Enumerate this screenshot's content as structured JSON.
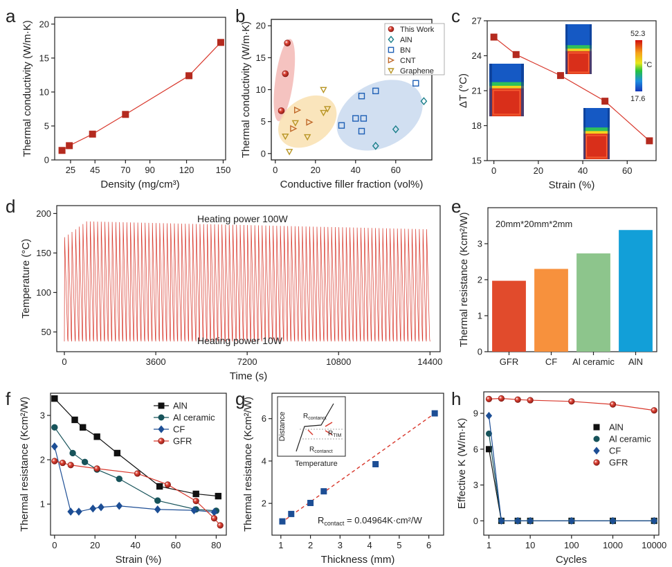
{
  "colors": {
    "red_marker": "#b42a1f",
    "red_line": "#d8362a",
    "black": "#111111",
    "teal": "#17535a",
    "blue": "#1d4e95",
    "ellipse_red": "#f3b9b5",
    "ellipse_yellow": "#f9e0b0",
    "ellipse_blue": "#c9d9ee",
    "gold": "#b89524",
    "orange_tri": "#c0692a"
  },
  "chart_data": [
    {
      "panel": "a",
      "type": "line",
      "xlabel": "Density (mg/cm³)",
      "ylabel": "Thermal conductivity (W/m·K)",
      "xlim": [
        12,
        152
      ],
      "ylim": [
        0,
        21
      ],
      "xticks": [
        25,
        45,
        70,
        90,
        120,
        150
      ],
      "xtick_labels": [
        "25",
        "45",
        "70",
        "90",
        "120",
        "150"
      ],
      "yticks": [
        0,
        5,
        10,
        15,
        20
      ],
      "ytick_labels": [
        "0",
        "5",
        "10",
        "15",
        "20"
      ],
      "series": [
        {
          "name": "density",
          "marker": "square",
          "color": "#b42a1f",
          "x": [
            18,
            24,
            43,
            70,
            122,
            148
          ],
          "y": [
            1.4,
            2.1,
            3.8,
            6.7,
            12.4,
            17.3
          ]
        }
      ]
    },
    {
      "panel": "b",
      "type": "scatter",
      "xlabel": "Conductive filler fraction (vol%)",
      "ylabel": "Thermal conductivity (W/m·K)",
      "xlim": [
        -2,
        78
      ],
      "ylim": [
        -1,
        21
      ],
      "xticks": [
        0,
        20,
        40,
        60
      ],
      "xtick_labels": [
        "0",
        "20",
        "40",
        "60"
      ],
      "yticks": [
        0,
        5,
        10,
        15,
        20
      ],
      "ytick_labels": [
        "0",
        "5",
        "10",
        "15",
        "20"
      ],
      "legend": [
        "This Work",
        "AlN",
        "BN",
        "CNT",
        "Graphene"
      ],
      "series": [
        {
          "name": "This Work",
          "marker": "circle",
          "x": [
            3,
            5,
            6
          ],
          "y": [
            6.7,
            12.5,
            17.3
          ]
        },
        {
          "name": "AlN",
          "marker": "diamond",
          "x": [
            50,
            60,
            74
          ],
          "y": [
            1.2,
            3.8,
            8.2
          ]
        },
        {
          "name": "BN",
          "marker": "square",
          "x": [
            33,
            40,
            43,
            44,
            43,
            50,
            70
          ],
          "y": [
            4.4,
            5.5,
            3.5,
            5.5,
            9.0,
            9.8,
            11.0
          ]
        },
        {
          "name": "CNT",
          "marker": "triangle-right",
          "x": [
            9,
            17,
            11
          ],
          "y": [
            3.9,
            4.9,
            6.8
          ]
        },
        {
          "name": "Graphene",
          "marker": "triangle-down",
          "x": [
            7,
            5,
            10,
            16,
            24,
            26,
            24
          ],
          "y": [
            0.3,
            2.7,
            4.8,
            2.6,
            6.4,
            7.0,
            10.0
          ]
        }
      ]
    },
    {
      "panel": "c",
      "type": "line",
      "xlabel": "Strain (%)",
      "ylabel": "ΔT (°C)",
      "xlim": [
        -3,
        73
      ],
      "ylim": [
        15,
        27
      ],
      "xticks": [
        0,
        20,
        40,
        60
      ],
      "xtick_labels": [
        "0",
        "20",
        "40",
        "60"
      ],
      "yticks": [
        15,
        18,
        21,
        24,
        27
      ],
      "ytick_labels": [
        "15",
        "18",
        "21",
        "24",
        "27"
      ],
      "colorbar": {
        "max": "52.3",
        "min": "17.6",
        "unit": "°C"
      },
      "series": [
        {
          "name": "ΔT",
          "marker": "square",
          "color": "#b42a1f",
          "x": [
            0,
            10,
            30,
            50,
            70
          ],
          "y": [
            25.6,
            24.1,
            22.3,
            20.1,
            16.7
          ]
        }
      ]
    },
    {
      "panel": "d",
      "type": "line",
      "xlabel": "Time (s)",
      "ylabel": "Temperature (°C)",
      "xlim": [
        -300,
        14800
      ],
      "ylim": [
        25,
        210
      ],
      "xticks": [
        0,
        3600,
        7200,
        10800,
        14400
      ],
      "xtick_labels": [
        "0",
        "3600",
        "7200",
        "10800",
        "14400"
      ],
      "yticks": [
        50,
        100,
        150,
        200
      ],
      "ytick_labels": [
        "50",
        "100",
        "150",
        "200"
      ],
      "annotations": [
        "Heating power 100W",
        "Heating power  10W"
      ],
      "series": [
        {
          "name": "cycling",
          "color": "#d8362a",
          "cycles": 100,
          "t_start": 0,
          "t_end": 14400,
          "peak_start": 170,
          "peak_max": 190,
          "peak_end": 180,
          "trough": 38
        }
      ]
    },
    {
      "panel": "e",
      "type": "bar",
      "ylabel": "Thermal resistance (Kcm²/W)",
      "ylim": [
        0,
        4
      ],
      "yticks": [
        0,
        1,
        2,
        3
      ],
      "ytick_labels": [
        "0",
        "1",
        "2",
        "3"
      ],
      "annotation": "20mm*20mm*2mm",
      "categories": [
        "GFR",
        "CF",
        "Al ceramic",
        "AlN"
      ],
      "values": [
        1.97,
        2.3,
        2.73,
        3.38
      ],
      "bar_colors": [
        "#e14b2c",
        "#f7913d",
        "#8dc58c",
        "#129fd8"
      ]
    },
    {
      "panel": "f",
      "type": "line",
      "xlabel": "Strain (%)",
      "ylabel": "Thermal resistance (Kcm²/W)",
      "xlim": [
        -2,
        85
      ],
      "ylim": [
        0.3,
        3.5
      ],
      "xticks": [
        0,
        20,
        40,
        60,
        80
      ],
      "xtick_labels": [
        "0",
        "20",
        "40",
        "60",
        "80"
      ],
      "yticks": [
        1,
        2,
        3
      ],
      "ytick_labels": [
        "1",
        "2",
        "3"
      ],
      "legend": [
        "AlN",
        "Al ceramic",
        "CF",
        "GFR"
      ],
      "series": [
        {
          "name": "AlN",
          "marker": "square",
          "color": "#111111",
          "x": [
            0,
            10,
            14,
            21,
            31,
            52,
            70,
            81
          ],
          "y": [
            3.38,
            2.9,
            2.73,
            2.52,
            2.15,
            1.4,
            1.23,
            1.18
          ]
        },
        {
          "name": "Al ceramic",
          "marker": "circle",
          "color": "#17535a",
          "x": [
            0,
            9,
            15,
            21,
            32,
            51,
            70,
            80
          ],
          "y": [
            2.73,
            2.15,
            1.95,
            1.78,
            1.57,
            1.08,
            0.88,
            0.85
          ]
        },
        {
          "name": "CF",
          "marker": "diamond",
          "color": "#1d4e95",
          "x": [
            0,
            8,
            12,
            19,
            23,
            32,
            51,
            69,
            79
          ],
          "y": [
            2.3,
            0.83,
            0.83,
            0.9,
            0.93,
            0.96,
            0.88,
            0.86,
            0.82
          ]
        },
        {
          "name": "GFR",
          "marker": "circle",
          "color": "#d8362a",
          "x": [
            0,
            4,
            8,
            21,
            41,
            56,
            70,
            79,
            82
          ],
          "y": [
            1.97,
            1.93,
            1.88,
            1.8,
            1.69,
            1.44,
            1.07,
            0.68,
            0.52
          ]
        }
      ]
    },
    {
      "panel": "g",
      "type": "scatter",
      "xlabel": "Thickness (mm)",
      "ylabel": "Thermal resistance (Kcm²/W)",
      "xlim": [
        0.7,
        6.5
      ],
      "ylim": [
        0.5,
        7.2
      ],
      "xticks": [
        1,
        2,
        3,
        4,
        5,
        6
      ],
      "xtick_labels": [
        "1",
        "2",
        "3",
        "4",
        "5",
        "6"
      ],
      "yticks": [
        2,
        4,
        6
      ],
      "ytick_labels": [
        "2",
        "4",
        "6"
      ],
      "fit_label": "R",
      "fit_label_sub": "contact",
      "fit_label_rest": " = 0.04964K·cm²/W",
      "fit_line": {
        "x": [
          1.0,
          6.2
        ],
        "y": [
          1.08,
          6.25
        ]
      },
      "inset": {
        "ylabel": "Distance",
        "xlabel": "Temperature",
        "r_contact": "R",
        "r_contact_sub": "contanct",
        "r_tim": "R",
        "r_tim_sub": "TIM"
      },
      "series": [
        {
          "name": "measured",
          "marker": "square",
          "color": "#1d4e95",
          "x": [
            1.05,
            1.35,
            2.0,
            2.45,
            4.2,
            6.2
          ],
          "y": [
            1.15,
            1.5,
            2.02,
            2.57,
            3.85,
            6.25
          ]
        }
      ]
    },
    {
      "panel": "h",
      "type": "line",
      "xlabel": "Cycles",
      "ylabel": "Effective K (W/m·K)",
      "xscale": "log",
      "xlim": [
        0.75,
        13000
      ],
      "ylim": [
        -1.2,
        10.8
      ],
      "xticks": [
        1,
        10,
        100,
        1000,
        10000
      ],
      "xtick_labels": [
        "1",
        "10",
        "100",
        "1000",
        "10000"
      ],
      "yticks": [
        0,
        3,
        6,
        9
      ],
      "ytick_labels": [
        "0",
        "3",
        "6",
        "9"
      ],
      "legend": [
        "AlN",
        "Al ceramic",
        "CF",
        "GFR"
      ],
      "series": [
        {
          "name": "AlN",
          "marker": "square",
          "color": "#111111",
          "x": [
            1,
            2,
            5,
            10,
            100,
            1000,
            10000
          ],
          "y": [
            6.0,
            0,
            0,
            0,
            0,
            0,
            0
          ]
        },
        {
          "name": "Al ceramic",
          "marker": "circle",
          "color": "#17535a",
          "x": [
            1,
            2,
            5,
            10,
            100,
            1000,
            10000
          ],
          "y": [
            7.3,
            0,
            0,
            0,
            0,
            0,
            0
          ]
        },
        {
          "name": "CF",
          "marker": "diamond",
          "color": "#1d4e95",
          "x": [
            1,
            2,
            5,
            10,
            100,
            1000,
            10000
          ],
          "y": [
            8.8,
            0,
            0,
            0,
            0,
            0,
            0
          ]
        },
        {
          "name": "GFR",
          "marker": "circle",
          "color": "#d8362a",
          "x": [
            1,
            2,
            5,
            10,
            100,
            1000,
            10000
          ],
          "y": [
            10.2,
            10.25,
            10.15,
            10.1,
            10.0,
            9.75,
            9.25
          ]
        }
      ]
    }
  ]
}
